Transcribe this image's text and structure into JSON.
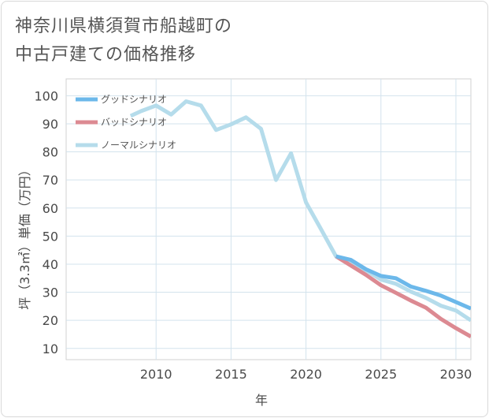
{
  "page": {
    "title_line1": "神奈川県横須賀市船越町の",
    "title_line2": "中古戸建ての価格推移"
  },
  "chart_data": {
    "type": "line",
    "title": "神奈川県横須賀市船越町の中古戸建ての価格推移",
    "xlabel": "年",
    "ylabel": "坪（3.3㎡）単価（万円）",
    "xlim": [
      2004,
      2031
    ],
    "ylim": [
      6,
      106
    ],
    "x_ticks": [
      2010,
      2015,
      2020,
      2025,
      2030
    ],
    "y_ticks": [
      10,
      20,
      30,
      40,
      50,
      60,
      70,
      80,
      90,
      100
    ],
    "grid": true,
    "legend_position": "top-left",
    "series": [
      {
        "name": "グッドシナリオ",
        "color": "#6cb8ea",
        "points": [
          [
            2022,
            42.8
          ],
          [
            2023,
            41.5
          ],
          [
            2024,
            38.2
          ],
          [
            2025,
            35.8
          ],
          [
            2026,
            35.0
          ],
          [
            2027,
            32.0
          ],
          [
            2028,
            30.5
          ],
          [
            2029,
            28.8
          ],
          [
            2030,
            26.5
          ],
          [
            2031,
            24.2
          ]
        ]
      },
      {
        "name": "バッドシナリオ",
        "color": "#dc8a92",
        "points": [
          [
            2022,
            42.8
          ],
          [
            2023,
            39.5
          ],
          [
            2024,
            36.2
          ],
          [
            2025,
            32.5
          ],
          [
            2026,
            29.8
          ],
          [
            2027,
            27.0
          ],
          [
            2028,
            24.5
          ],
          [
            2029,
            20.5
          ],
          [
            2030,
            17.2
          ],
          [
            2031,
            14.2
          ]
        ]
      },
      {
        "name": "ノーマルシナリオ",
        "color": "#b5dceb",
        "points": [
          [
            2008.3,
            92.8
          ],
          [
            2009,
            94.5
          ],
          [
            2010,
            96.5
          ],
          [
            2011,
            93.3
          ],
          [
            2012,
            98.0
          ],
          [
            2013,
            96.5
          ],
          [
            2014,
            87.8
          ],
          [
            2015,
            89.8
          ],
          [
            2016,
            92.3
          ],
          [
            2017,
            88.2
          ],
          [
            2018,
            70.0
          ],
          [
            2019,
            79.5
          ],
          [
            2020,
            62.0
          ],
          [
            2021,
            52.5
          ],
          [
            2022,
            42.8
          ],
          [
            2023,
            40.0
          ],
          [
            2024,
            37.8
          ],
          [
            2025,
            34.5
          ],
          [
            2026,
            33.0
          ],
          [
            2027,
            30.2
          ],
          [
            2028,
            28.0
          ],
          [
            2029,
            25.2
          ],
          [
            2030,
            23.5
          ],
          [
            2031,
            20.0
          ]
        ]
      }
    ]
  }
}
